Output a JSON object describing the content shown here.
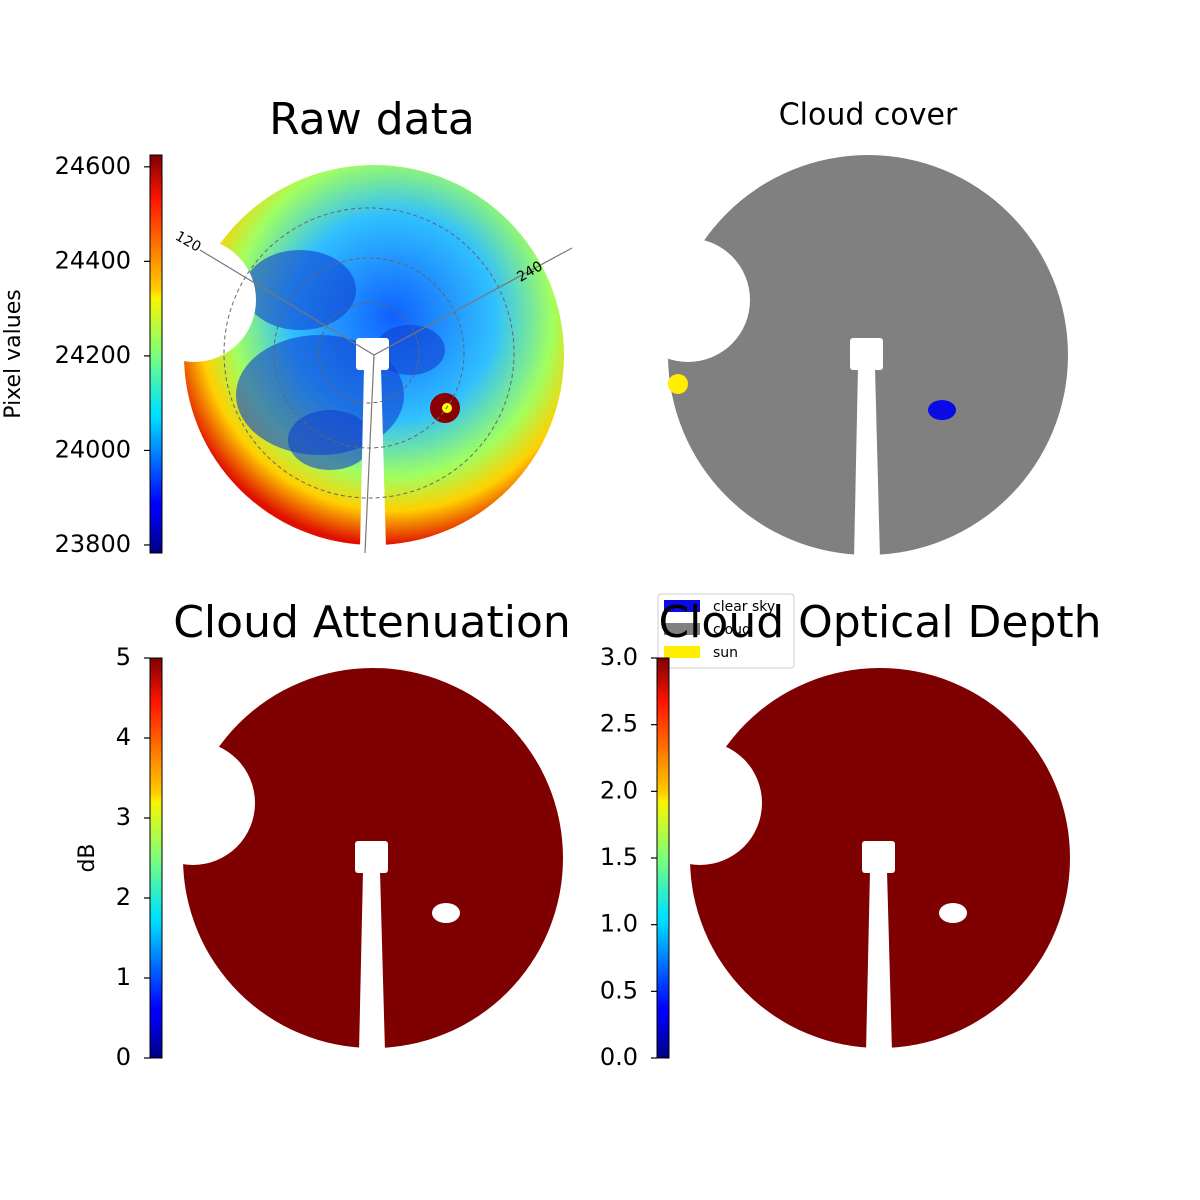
{
  "chart_data": [
    {
      "type": "image",
      "title": "Raw data",
      "colormap": "jet",
      "colorbar": {
        "label": "Pixel values",
        "lim": [
          23783,
          24625
        ],
        "ticks": [
          23800,
          24000,
          24200,
          24400,
          24600
        ]
      },
      "annotations": [
        "120",
        "240"
      ]
    },
    {
      "type": "image",
      "title": "Cloud cover",
      "classes": [
        {
          "name": "clear sky",
          "color": "#0a0ae6"
        },
        {
          "name": "cloud",
          "color": "#808080"
        },
        {
          "name": "sun",
          "color": "#ffee00"
        }
      ]
    },
    {
      "type": "image",
      "title": "Cloud Attenuation",
      "colormap": "jet",
      "colorbar": {
        "label": "dB",
        "lim": [
          0,
          5
        ],
        "ticks": [
          0,
          1,
          2,
          3,
          4,
          5
        ]
      }
    },
    {
      "type": "image",
      "title": "Cloud Optical Depth",
      "colormap": "jet",
      "colorbar": {
        "lim": [
          0,
          3
        ],
        "ticks": [
          {
            "value": 0,
            "label": "0.0"
          },
          {
            "value": 0.5,
            "label": "0.5"
          },
          {
            "value": 1,
            "label": "1.0"
          },
          {
            "value": 1.5,
            "label": "1.5"
          },
          {
            "value": 2,
            "label": "2.0"
          },
          {
            "value": 2.5,
            "label": "2.5"
          },
          {
            "value": 3,
            "label": "3.0"
          }
        ]
      }
    }
  ]
}
